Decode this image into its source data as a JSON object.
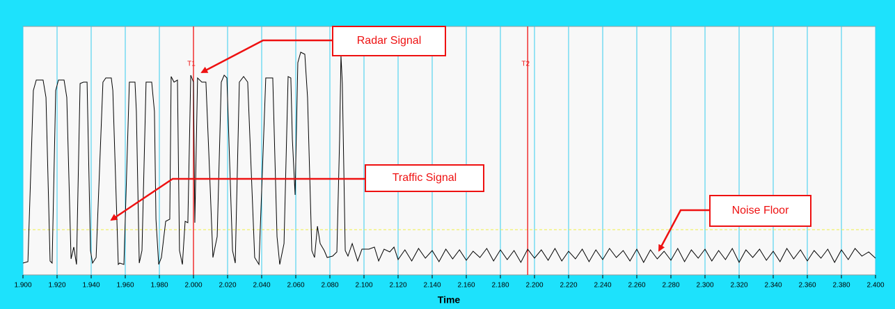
{
  "chart_data": {
    "type": "line",
    "x_label": "Time",
    "color": "#000000",
    "grid_color": "#33ccee",
    "xlim": [
      1.9,
      2.4
    ],
    "ylim": [
      0,
      357
    ],
    "xticks": [
      {
        "value": 1.9,
        "label": "1.900"
      },
      {
        "value": 1.92,
        "label": "1.920"
      },
      {
        "value": 1.94,
        "label": "1.940"
      },
      {
        "value": 1.96,
        "label": "1.960"
      },
      {
        "value": 1.98,
        "label": "1.980"
      },
      {
        "value": 2.0,
        "label": "2.000"
      },
      {
        "value": 2.02,
        "label": "2.020"
      },
      {
        "value": 2.04,
        "label": "2.040"
      },
      {
        "value": 2.06,
        "label": "2.060"
      },
      {
        "value": 2.08,
        "label": "2.080"
      },
      {
        "value": 2.1,
        "label": "2.100"
      },
      {
        "value": 2.12,
        "label": "2.120"
      },
      {
        "value": 2.14,
        "label": "2.140"
      },
      {
        "value": 2.16,
        "label": "2.160"
      },
      {
        "value": 2.18,
        "label": "2.180"
      },
      {
        "value": 2.2,
        "label": "2.200"
      },
      {
        "value": 2.22,
        "label": "2.220"
      },
      {
        "value": 2.24,
        "label": "2.240"
      },
      {
        "value": 2.26,
        "label": "2.260"
      },
      {
        "value": 2.28,
        "label": "2.280"
      },
      {
        "value": 2.3,
        "label": "2.300"
      },
      {
        "value": 2.32,
        "label": "2.320"
      },
      {
        "value": 2.34,
        "label": "2.340"
      },
      {
        "value": 2.36,
        "label": "2.360"
      },
      {
        "value": 2.38,
        "label": "2.380"
      },
      {
        "value": 2.4,
        "label": "2.400"
      }
    ],
    "markers": [
      {
        "label": "T1",
        "x": 2.0,
        "color": "#ee1111"
      },
      {
        "label": "T2",
        "x": 2.196,
        "color": "#ee1111"
      }
    ],
    "threshold": {
      "y": 65,
      "color": "#eeee44"
    },
    "annotations": [
      "Radar Signal",
      "Traffic Signal",
      "Noise Floor"
    ],
    "x": [
      1.9,
      1.9029,
      1.9061,
      1.9078,
      1.9118,
      1.9135,
      1.9159,
      1.9171,
      1.9192,
      1.9208,
      1.9241,
      1.9257,
      1.9282,
      1.9298,
      1.9314,
      1.9335,
      1.9355,
      1.9376,
      1.9396,
      1.9408,
      1.9429,
      1.9469,
      1.9486,
      1.9518,
      1.9527,
      1.9559,
      1.9567,
      1.9592,
      1.9624,
      1.9657,
      1.9665,
      1.9682,
      1.9698,
      1.9722,
      1.9755,
      1.9771,
      1.978,
      1.9796,
      1.9812,
      1.9837,
      1.9861,
      1.9869,
      1.9886,
      1.9906,
      1.9918,
      1.9935,
      1.9951,
      1.9967,
      1.9984,
      2.0,
      2.0008,
      2.0024,
      2.0049,
      2.0073,
      2.009,
      2.0114,
      2.0139,
      2.0163,
      2.018,
      2.0196,
      2.0229,
      2.0245,
      2.0269,
      2.0294,
      2.0318,
      2.0359,
      2.0384,
      2.0408,
      2.0424,
      2.0465,
      2.049,
      2.0506,
      2.0531,
      2.0555,
      2.0571,
      2.058,
      2.0596,
      2.0612,
      2.0629,
      2.0653,
      2.0669,
      2.0694,
      2.071,
      2.0727,
      2.0743,
      2.0767,
      2.0784,
      2.0816,
      2.0841,
      2.0857,
      2.0865,
      2.0873,
      2.089,
      2.0906,
      2.0931,
      2.0963,
      2.0988,
      2.1029,
      2.1061,
      2.1086,
      2.1118,
      2.1151,
      2.1176,
      2.12,
      2.124,
      2.128,
      2.132,
      2.136,
      2.14,
      2.144,
      2.148,
      2.152,
      2.156,
      2.16,
      2.164,
      2.168,
      2.172,
      2.176,
      2.18,
      2.184,
      2.188,
      2.192,
      2.196,
      2.2,
      2.204,
      2.208,
      2.212,
      2.216,
      2.22,
      2.224,
      2.228,
      2.232,
      2.236,
      2.24,
      2.244,
      2.248,
      2.252,
      2.256,
      2.26,
      2.264,
      2.268,
      2.272,
      2.276,
      2.28,
      2.284,
      2.288,
      2.292,
      2.296,
      2.3,
      2.304,
      2.308,
      2.312,
      2.316,
      2.32,
      2.324,
      2.328,
      2.332,
      2.336,
      2.34,
      2.344,
      2.348,
      2.352,
      2.356,
      2.36,
      2.364,
      2.368,
      2.372,
      2.376,
      2.38,
      2.384,
      2.388,
      2.392,
      2.396,
      2.4
    ],
    "values": [
      17,
      19,
      265,
      280,
      280,
      255,
      20,
      17,
      265,
      280,
      280,
      255,
      23,
      40,
      15,
      275,
      277,
      277,
      35,
      17,
      25,
      277,
      283,
      283,
      265,
      15,
      17,
      15,
      277,
      277,
      235,
      17,
      35,
      277,
      277,
      235,
      80,
      15,
      25,
      77,
      80,
      285,
      277,
      280,
      35,
      15,
      77,
      75,
      287,
      277,
      75,
      283,
      277,
      277,
      175,
      25,
      55,
      277,
      287,
      283,
      35,
      17,
      277,
      285,
      277,
      25,
      15,
      175,
      283,
      283,
      55,
      15,
      45,
      285,
      283,
      195,
      115,
      305,
      320,
      317,
      255,
      35,
      25,
      70,
      45,
      35,
      25,
      27,
      33,
      195,
      315,
      275,
      35,
      27,
      45,
      20,
      37,
      37,
      40,
      20,
      37,
      33,
      40,
      22,
      36,
      20,
      38,
      24,
      35,
      19,
      37,
      23,
      36,
      21,
      34,
      25,
      38,
      20,
      36,
      22,
      35,
      18,
      37,
      24,
      36,
      21,
      38,
      20,
      34,
      23,
      37,
      19,
      36,
      22,
      38,
      25,
      35,
      20,
      37,
      18,
      36,
      23,
      34,
      21,
      38,
      19,
      36,
      24,
      37,
      20,
      35,
      22,
      38,
      18,
      36,
      25,
      37,
      21,
      34,
      19,
      38,
      23,
      36,
      20,
      35,
      24,
      37,
      18,
      36,
      22,
      38,
      27,
      33,
      24
    ]
  }
}
